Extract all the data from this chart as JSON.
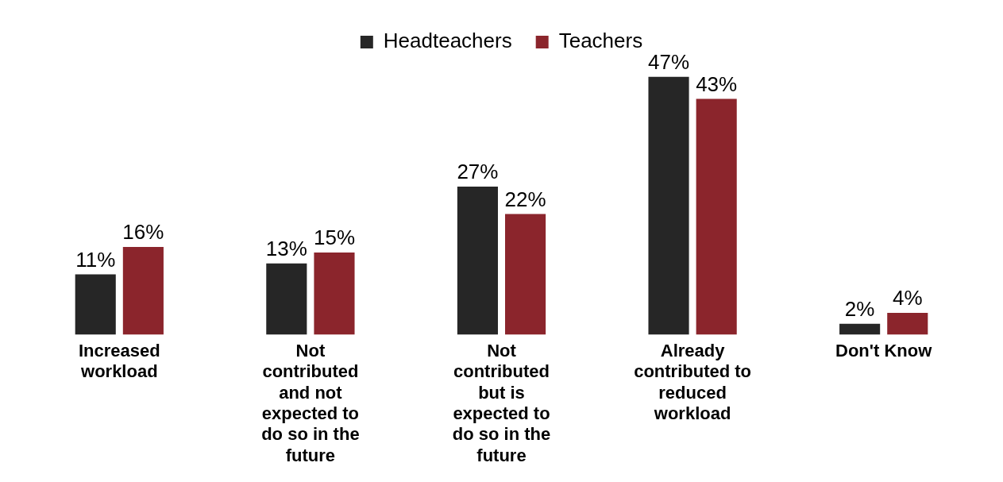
{
  "chart_data": {
    "type": "bar",
    "categories": [
      "Increased workload",
      "Not contributed and not expected to do so in the future",
      "Not contributed but is expected to do so in the future",
      "Already contributed to reduced workload",
      "Don't Know"
    ],
    "series": [
      {
        "name": "Headteachers",
        "color": "#262626",
        "values": [
          11,
          13,
          27,
          47,
          2
        ],
        "value_labels": [
          "11%",
          "13%",
          "27%",
          "47%",
          "2%"
        ]
      },
      {
        "name": "Teachers",
        "color": "#8b252c",
        "values": [
          16,
          15,
          22,
          43,
          4
        ],
        "value_labels": [
          "16%",
          "15%",
          "22%",
          "43%",
          "4%"
        ]
      }
    ],
    "legend": "top",
    "grid": false
  }
}
